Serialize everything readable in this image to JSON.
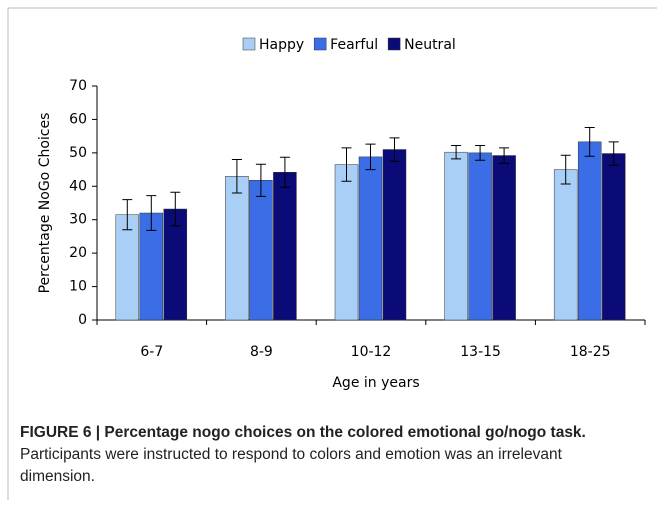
{
  "chart_data": {
    "type": "bar",
    "categories": [
      "6-7",
      "8-9",
      "10-12",
      "13-15",
      "18-25"
    ],
    "series": [
      {
        "name": "Happy",
        "color": "#a9cff6",
        "values": [
          31.5,
          43,
          46.5,
          50.2,
          45
        ],
        "errors": [
          4.5,
          5,
          5,
          2,
          4.3
        ]
      },
      {
        "name": "Fearful",
        "color": "#3a6de6",
        "values": [
          32,
          41.8,
          48.8,
          50,
          53.3
        ],
        "errors": [
          5.2,
          4.8,
          3.8,
          2.2,
          4.3
        ]
      },
      {
        "name": "Neutral",
        "color": "#0b0b78",
        "values": [
          33.2,
          44.2,
          51,
          49.2,
          49.8
        ],
        "errors": [
          5,
          4.5,
          3.5,
          2.3,
          3.5
        ]
      }
    ],
    "ylim": [
      0,
      70
    ],
    "yticks": [
      0,
      10,
      20,
      30,
      40,
      50,
      60,
      70
    ],
    "ylabel": "Percentage NoGo Choices",
    "xlabel": "Age in years",
    "legend": "top"
  },
  "caption": {
    "bold": "FIGURE 6 | Percentage nogo choices on the colored emotional go/nogo task.",
    "text": "Participants were instructed to respond to colors and emotion was an irrelevant dimension."
  }
}
